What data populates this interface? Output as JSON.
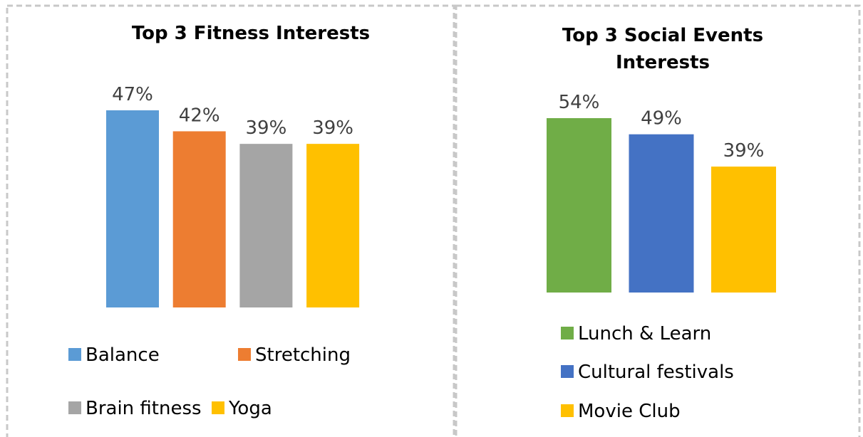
{
  "chart_data": [
    {
      "type": "bar",
      "title": "Top 3 Fitness Interests",
      "series": [
        {
          "name": "Balance",
          "color": "#5b9bd5",
          "values": [
            47
          ],
          "value_labels": [
            "47%"
          ]
        },
        {
          "name": "Stretching",
          "color": "#ed7d31",
          "values": [
            42
          ],
          "value_labels": [
            "42%"
          ]
        },
        {
          "name": "Brain fitness",
          "color": "#a5a5a5",
          "values": [
            39
          ],
          "value_labels": [
            "39%"
          ]
        },
        {
          "name": "Yoga",
          "color": "#ffc000",
          "values": [
            39
          ],
          "value_labels": [
            "39%"
          ]
        }
      ],
      "legend": "bottom"
    },
    {
      "type": "bar",
      "title": "Top 3 Social Events Interests",
      "series": [
        {
          "name": "Lunch & Learn",
          "color": "#70ad47",
          "values": [
            54
          ],
          "value_labels": [
            "54%"
          ]
        },
        {
          "name": "Cultural festivals",
          "color": "#4472c4",
          "values": [
            49
          ],
          "value_labels": [
            "49%"
          ]
        },
        {
          "name": "Movie Club",
          "color": "#ffc000",
          "values": [
            39
          ],
          "value_labels": [
            "39%"
          ]
        }
      ],
      "legend": "bottom"
    }
  ]
}
